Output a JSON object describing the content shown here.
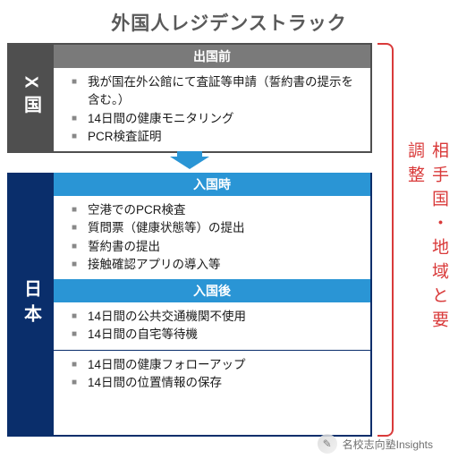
{
  "title": "外国人レジデンストラック",
  "bracket_label": "相手国・地域と要調整",
  "colors": {
    "title_text": "#5a5a5a",
    "x_border": "#4f4f4f",
    "x_header": "#7a7a7a",
    "jp_border": "#0a2e6b",
    "jp_header": "#2a95d5",
    "bracket": "#d93a3a",
    "bullet": "#888888",
    "body_text": "#1a1a1a",
    "background": "#ffffff"
  },
  "typography": {
    "title_fontsize": 21,
    "country_fontsize": 20,
    "header_fontsize": 14,
    "item_fontsize": 13.5,
    "bracket_fontsize": 19
  },
  "sections": [
    {
      "id": "x",
      "country_label": "X国",
      "country_bg": "#4f4f4f",
      "phases": [
        {
          "header": "出国前",
          "header_bg": "#7a7a7a",
          "items": [
            "我が国在外公館にて査証等申請（誓約書の提示を含む。）",
            "14日間の健康モニタリング",
            "PCR検査証明"
          ]
        }
      ]
    },
    {
      "id": "jp",
      "country_label": "日本",
      "country_bg": "#0a2e6b",
      "phases": [
        {
          "header": "入国時",
          "header_bg": "#2a95d5",
          "items": [
            "空港でのPCR検査",
            "質問票（健康状態等）の提出",
            "誓約書の提出",
            "接触確認アプリの導入等"
          ]
        },
        {
          "header": "入国後",
          "header_bg": "#2a95d5",
          "groups": [
            [
              "14日間の公共交通機関不使用",
              "14日間の自宅等待機"
            ],
            [
              "14日間の健康フォローアップ",
              "14日間の位置情報の保存"
            ]
          ]
        }
      ]
    }
  ],
  "arrow": {
    "color": "#2a95d5",
    "width": 44,
    "height": 14
  },
  "watermark": {
    "icon_glyph": "✎",
    "text": "名校志向塾Insights"
  }
}
